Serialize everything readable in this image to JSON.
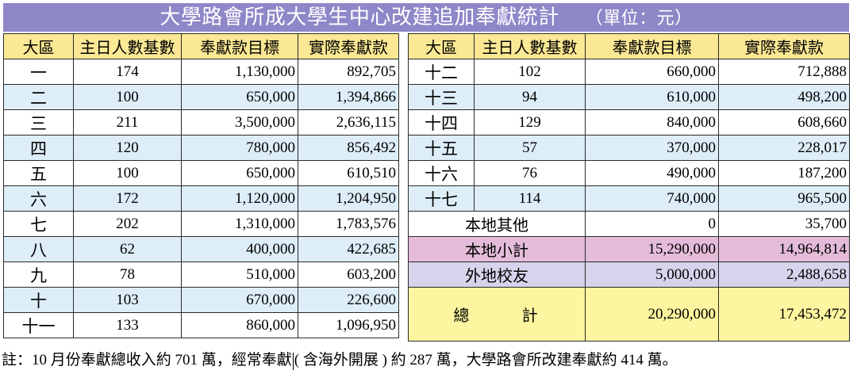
{
  "title": {
    "main": "大學路會所成大學生中心改建追加奉獻統計",
    "unit": "（單位：元）"
  },
  "headers": {
    "region": "大區",
    "base": "主日人數基數",
    "target": "奉獻款目標",
    "actual": "實際奉獻款"
  },
  "left_rows": [
    {
      "region": "一",
      "base": "174",
      "target": "1,130,000",
      "actual": "892,705"
    },
    {
      "region": "二",
      "base": "100",
      "target": "650,000",
      "actual": "1,394,866"
    },
    {
      "region": "三",
      "base": "211",
      "target": "3,500,000",
      "actual": "2,636,115"
    },
    {
      "region": "四",
      "base": "120",
      "target": "780,000",
      "actual": "856,492"
    },
    {
      "region": "五",
      "base": "100",
      "target": "650,000",
      "actual": "610,510"
    },
    {
      "region": "六",
      "base": "172",
      "target": "1,120,000",
      "actual": "1,204,950"
    },
    {
      "region": "七",
      "base": "202",
      "target": "1,310,000",
      "actual": "1,783,576"
    },
    {
      "region": "八",
      "base": "62",
      "target": "400,000",
      "actual": "422,685"
    },
    {
      "region": "九",
      "base": "78",
      "target": "510,000",
      "actual": "603,200"
    },
    {
      "region": "十",
      "base": "103",
      "target": "670,000",
      "actual": "226,600"
    },
    {
      "region": "十一",
      "base": "133",
      "target": "860,000",
      "actual": "1,096,950"
    }
  ],
  "right_rows": [
    {
      "region": "十二",
      "base": "102",
      "target": "660,000",
      "actual": "712,888"
    },
    {
      "region": "十三",
      "base": "94",
      "target": "610,000",
      "actual": "498,200"
    },
    {
      "region": "十四",
      "base": "129",
      "target": "840,000",
      "actual": "608,660"
    },
    {
      "region": "十五",
      "base": "57",
      "target": "370,000",
      "actual": "228,017"
    },
    {
      "region": "十六",
      "base": "76",
      "target": "490,000",
      "actual": "187,200"
    },
    {
      "region": "十七",
      "base": "114",
      "target": "740,000",
      "actual": "965,500"
    }
  ],
  "summary": {
    "local_other": {
      "label": "本地其他",
      "target": "0",
      "actual": "35,700"
    },
    "local_subtotal": {
      "label": "本地小計",
      "target": "15,290,000",
      "actual": "14,964,814"
    },
    "overseas": {
      "label": "外地校友",
      "target": "5,000,000",
      "actual": "2,488,658"
    },
    "total": {
      "label": "總 計",
      "target": "20,290,000",
      "actual": "17,453,472"
    }
  },
  "footnote": {
    "before": "註：10 月份奉獻總收入約 701 萬，經常奉獻",
    "after": "( 含海外開展 ) 約 287 萬，大學路會所改建奉獻約 414 萬。"
  },
  "colors": {
    "title_bg": "#8e87c8",
    "header_bg": "#fbe894",
    "alt_row_bg": "#deeef8",
    "subtotal_bg": "#e4bcd9",
    "overseas_bg": "#d7d3ec",
    "total_bg": "#fdf59f"
  }
}
